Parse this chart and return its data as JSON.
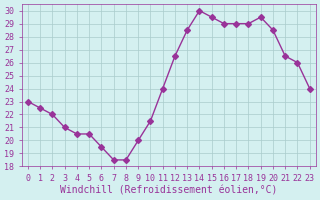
{
  "x": [
    0,
    1,
    2,
    3,
    4,
    5,
    6,
    7,
    8,
    9,
    10,
    11,
    12,
    13,
    14,
    15,
    16,
    17,
    18,
    19,
    20,
    21,
    22,
    23
  ],
  "y": [
    23,
    22.5,
    22,
    21,
    20.5,
    20.5,
    19.5,
    18.5,
    18.5,
    20,
    21.5,
    24,
    26.5,
    28.5,
    30,
    29.5,
    29,
    29,
    29,
    29.5,
    28.5,
    26.5,
    26,
    24
  ],
  "line_color": "#993399",
  "marker": "D",
  "marker_size": 3,
  "bg_color": "#d4f0f0",
  "grid_color": "#aacccc",
  "xlabel": "Windchill (Refroidissement éolien,°C)",
  "xlabel_color": "#993399",
  "xlim": [
    -0.5,
    23.5
  ],
  "ylim": [
    18,
    30.5
  ],
  "yticks": [
    18,
    19,
    20,
    21,
    22,
    23,
    24,
    25,
    26,
    27,
    28,
    29,
    30
  ],
  "xticks": [
    0,
    1,
    2,
    3,
    4,
    5,
    6,
    7,
    8,
    9,
    10,
    11,
    12,
    13,
    14,
    15,
    16,
    17,
    18,
    19,
    20,
    21,
    22,
    23
  ],
  "tick_color": "#993399",
  "tick_label_size": 6,
  "xlabel_size": 7
}
